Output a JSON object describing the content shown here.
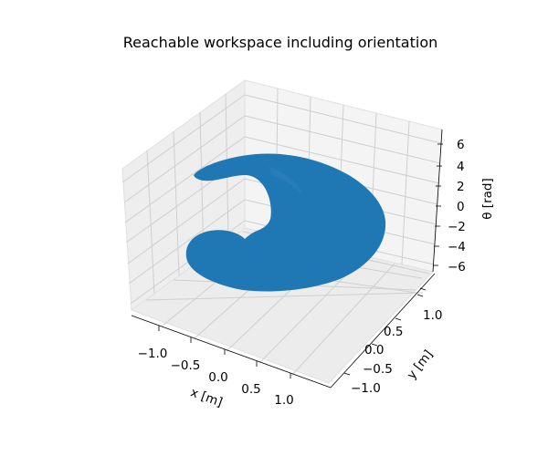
{
  "chart_data": {
    "type": "surface3d",
    "title": "Reachable workspace including orientation",
    "xlabel": "x [m]",
    "ylabel": "y [m]",
    "zlabel": "θ [rad]",
    "xticks": [
      "−1.0",
      "−0.5",
      "0.0",
      "0.5",
      "1.0"
    ],
    "yticks": [
      "−1.0",
      "−0.5",
      "0.0",
      "0.5",
      "1.0"
    ],
    "zticks": [
      "−6",
      "−4",
      "−2",
      "0",
      "2",
      "4",
      "6"
    ],
    "xlim": [
      -1.35,
      1.35
    ],
    "ylim": [
      -1.35,
      1.35
    ],
    "zlim": [
      -7,
      7
    ],
    "grid": true,
    "surface_color": "#1f77b4",
    "pane_color": "#f2f2f2"
  }
}
